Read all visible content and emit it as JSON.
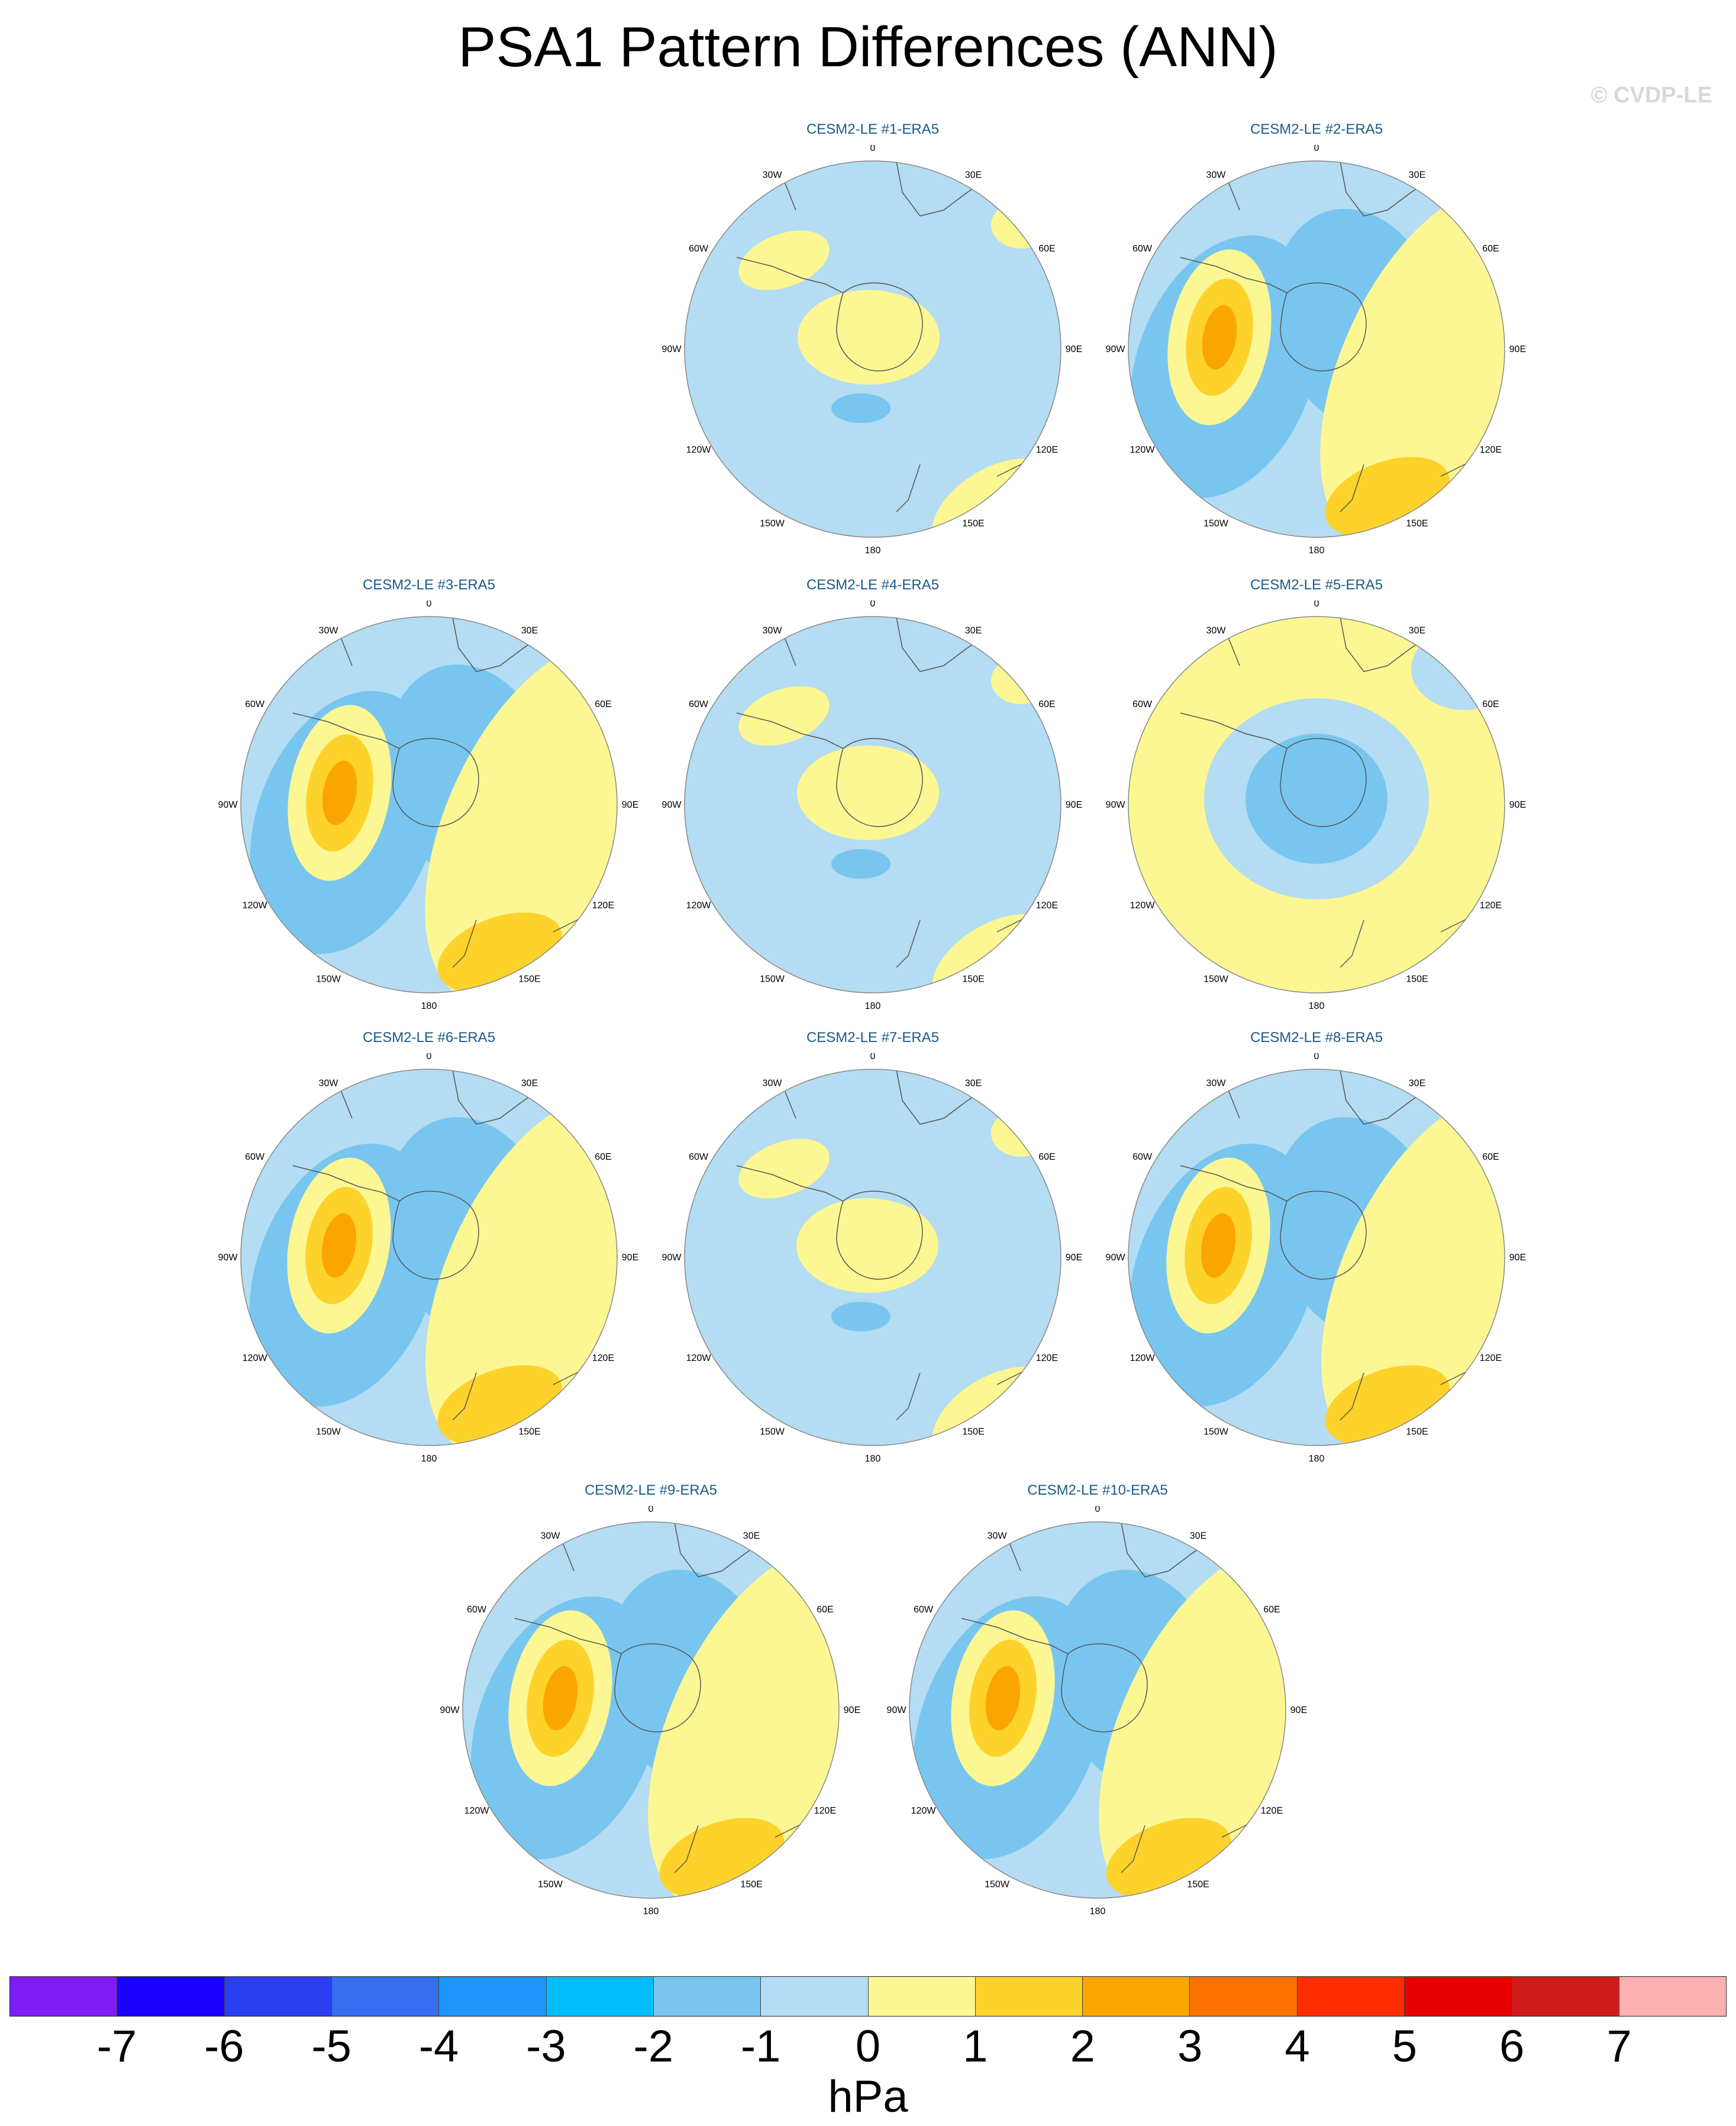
{
  "title": "PSA1 Pattern Differences (ANN)",
  "watermark": "© CVDP-LE",
  "colors": {
    "background_fill": "#b4dcf2",
    "neg_1": "#78c6f0",
    "neg_2": "#00bef9",
    "pos_1": "#fdf793",
    "pos_2": "#fdd22b",
    "pos_3": "#fba600",
    "pos_4": "#fb7200",
    "coastline": "#555555"
  },
  "panels": [
    {
      "id": 1,
      "title": "CESM2-LE #1-ERA5",
      "pattern": "weak"
    },
    {
      "id": 2,
      "title": "CESM2-LE #2-ERA5",
      "pattern": "strong"
    },
    {
      "id": 3,
      "title": "CESM2-LE #3-ERA5",
      "pattern": "strong"
    },
    {
      "id": 4,
      "title": "CESM2-LE #4-ERA5",
      "pattern": "weak"
    },
    {
      "id": 5,
      "title": "CESM2-LE #5-ERA5",
      "pattern": "ring"
    },
    {
      "id": 6,
      "title": "CESM2-LE #6-ERA5",
      "pattern": "strong"
    },
    {
      "id": 7,
      "title": "CESM2-LE #7-ERA5",
      "pattern": "weak"
    },
    {
      "id": 8,
      "title": "CESM2-LE #8-ERA5",
      "pattern": "strong"
    },
    {
      "id": 9,
      "title": "CESM2-LE #9-ERA5",
      "pattern": "strong"
    },
    {
      "id": 10,
      "title": "CESM2-LE #10-ERA5",
      "pattern": "strong"
    }
  ],
  "longitude_labels": [
    "0",
    "30E",
    "60E",
    "90E",
    "120E",
    "150E",
    "180",
    "150W",
    "120W",
    "90W",
    "60W",
    "30W"
  ],
  "colorbar": {
    "colors": [
      "#7d1cf5",
      "#1a00fe",
      "#2b3ff0",
      "#336ff0",
      "#1d95fb",
      "#00bef9",
      "#78c6f0",
      "#b4dcf2",
      "#fdf793",
      "#fdd22b",
      "#fba600",
      "#fb7200",
      "#fe2d00",
      "#e60000",
      "#d01b1b",
      "#fdb0b0"
    ],
    "tick_labels": [
      "-7",
      "-6",
      "-5",
      "-4",
      "-3",
      "-2",
      "-1",
      "0",
      "1",
      "2",
      "3",
      "4",
      "5",
      "6",
      "7"
    ],
    "units": "hPa"
  }
}
